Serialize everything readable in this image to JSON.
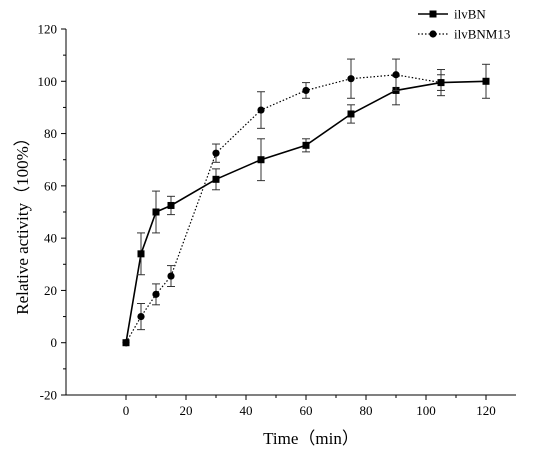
{
  "chart_data": {
    "type": "line",
    "xlabel": "Time（min）",
    "ylabel": "Relative activity（100%）",
    "xlim": [
      -20,
      130
    ],
    "ylim": [
      -20,
      120
    ],
    "xticks": [
      0,
      20,
      40,
      60,
      80,
      100,
      120
    ],
    "yticks": [
      -20,
      0,
      20,
      40,
      60,
      80,
      100,
      120
    ],
    "grid": false,
    "legend_position": "top-right",
    "series": [
      {
        "name": "ilvBN",
        "marker": "square",
        "line_style": "solid",
        "color": "#000000",
        "x": [
          0,
          5,
          10,
          15,
          30,
          45,
          60,
          75,
          90,
          105,
          120
        ],
        "y": [
          0,
          34,
          50,
          52.5,
          62.5,
          70,
          75.5,
          87.5,
          96.5,
          99.5,
          100
        ],
        "error": [
          0,
          8,
          8,
          3.5,
          4,
          8,
          2.5,
          3.5,
          5.5,
          5,
          6.5
        ]
      },
      {
        "name": "ilvBNM13",
        "marker": "circle",
        "line_style": "dotted",
        "color": "#000000",
        "x": [
          0,
          5,
          10,
          15,
          30,
          45,
          60,
          75,
          90,
          105
        ],
        "y": [
          0,
          10,
          18.5,
          25.5,
          72.5,
          89,
          96.5,
          101,
          102.5,
          99.5
        ],
        "error": [
          0,
          5,
          4,
          4,
          3.5,
          7,
          3,
          7.5,
          6,
          3
        ]
      }
    ]
  }
}
